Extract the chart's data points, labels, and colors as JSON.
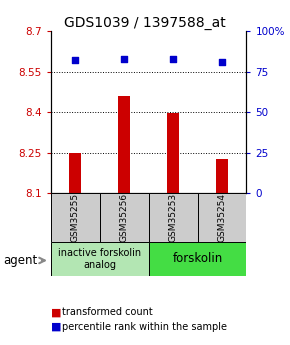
{
  "title": "GDS1039 / 1397588_at",
  "samples": [
    "GSM35255",
    "GSM35256",
    "GSM35253",
    "GSM35254"
  ],
  "bar_values": [
    8.25,
    8.46,
    8.395,
    8.225
  ],
  "percentile_values": [
    82,
    83,
    83,
    81
  ],
  "bar_bottom": 8.1,
  "ylim_left": [
    8.1,
    8.7
  ],
  "ylim_right": [
    0,
    100
  ],
  "yticks_left": [
    8.1,
    8.25,
    8.4,
    8.55,
    8.7
  ],
  "yticks_right": [
    0,
    25,
    50,
    75,
    100
  ],
  "ytick_labels_left": [
    "8.1",
    "8.25",
    "8.4",
    "8.55",
    "8.7"
  ],
  "ytick_labels_right": [
    "0",
    "25",
    "50",
    "75",
    "100%"
  ],
  "bar_color": "#cc0000",
  "percentile_color": "#0000cc",
  "group1_label": "inactive forskolin\nanalog",
  "group2_label": "forskolin",
  "group1_color": "#b3e6b3",
  "group2_color": "#44dd44",
  "sample_box_color": "#cccccc",
  "agent_label": "agent",
  "legend_bar_label": "transformed count",
  "legend_pct_label": "percentile rank within the sample",
  "grid_color": "#888888",
  "title_fontsize": 10,
  "tick_fontsize": 7.5,
  "sample_fontsize": 6.5,
  "group_fontsize": 7,
  "legend_fontsize": 7
}
